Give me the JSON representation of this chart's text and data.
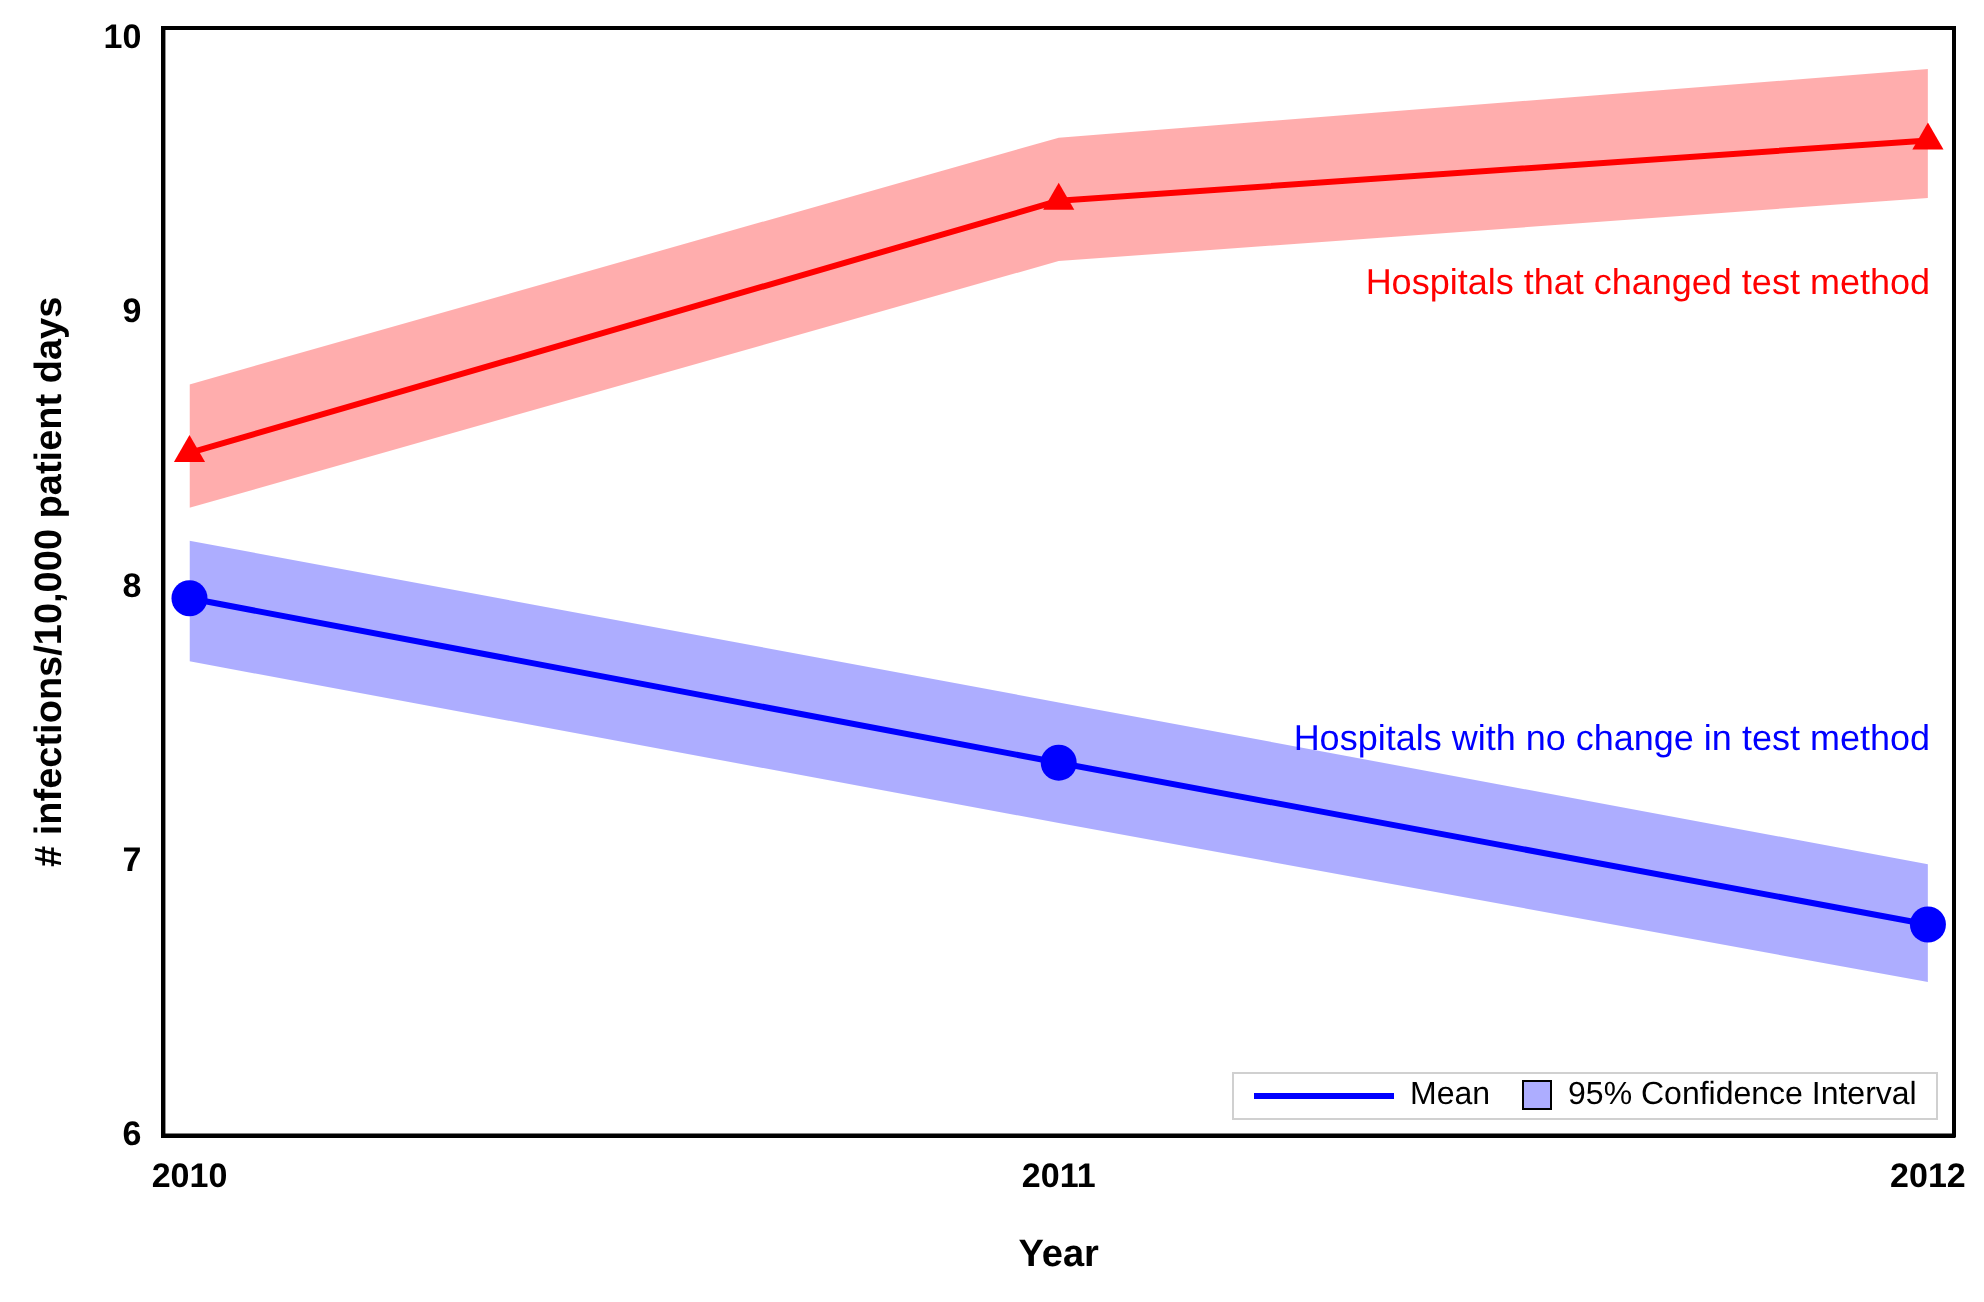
{
  "chart_data": {
    "type": "line",
    "xlabel": "Year",
    "ylabel": "# infections/10,000 patient days",
    "x": [
      2010,
      2011,
      2012
    ],
    "xlim": [
      2009.97,
      2012.03
    ],
    "xticks": [
      2010,
      2011,
      2012
    ],
    "ylim": [
      6,
      10.04
    ],
    "yticks": [
      6,
      7,
      8,
      9,
      10
    ],
    "grid": false,
    "line_style": "solid",
    "series": [
      {
        "name": "Hospitals that changed test method",
        "color": "#ff0000",
        "marker": "triangle",
        "values": [
          8.49,
          9.41,
          9.63
        ],
        "lower": [
          8.29,
          9.19,
          9.42
        ],
        "upper": [
          8.74,
          9.64,
          9.89
        ]
      },
      {
        "name": "Hospitals with no change in test method",
        "color": "#0000ff",
        "marker": "circle",
        "values": [
          7.96,
          7.36,
          6.77
        ],
        "lower": [
          7.73,
          7.14,
          6.56
        ],
        "upper": [
          8.17,
          7.58,
          6.99
        ]
      }
    ],
    "annotations": [
      "Mean",
      "95% Confidence Interval"
    ]
  }
}
